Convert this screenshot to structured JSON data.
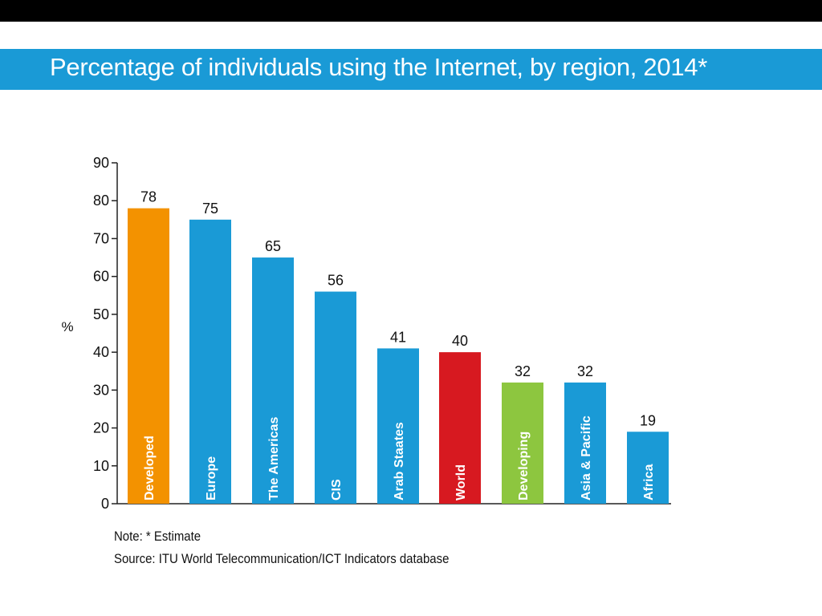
{
  "chart_data": {
    "type": "bar",
    "title": "Percentage of individuals using the Internet, by region, 2014*",
    "ylabel": "%",
    "xlabel": "",
    "ylim": [
      0,
      90
    ],
    "yticks": [
      0,
      10,
      20,
      30,
      40,
      50,
      60,
      70,
      80,
      90
    ],
    "categories": [
      "Developed",
      "Europe",
      "The Americas",
      "CIS",
      "Arab Staates",
      "World",
      "Developing",
      "Asia & Pacific",
      "Africa"
    ],
    "values": [
      78,
      75,
      65,
      56,
      41,
      40,
      32,
      32,
      19
    ],
    "colors": [
      "#f39200",
      "#1a9ad6",
      "#1a9ad6",
      "#1a9ad6",
      "#1a9ad6",
      "#d71920",
      "#8dc63f",
      "#1a9ad6",
      "#1a9ad6"
    ],
    "value_labels": [
      "78",
      "75",
      "65",
      "56",
      "41",
      "40",
      "32",
      "32",
      "19"
    ]
  },
  "notes": {
    "note": "Note: * Estimate",
    "source": "Source: ITU World Telecommunication/ICT Indicators database"
  }
}
